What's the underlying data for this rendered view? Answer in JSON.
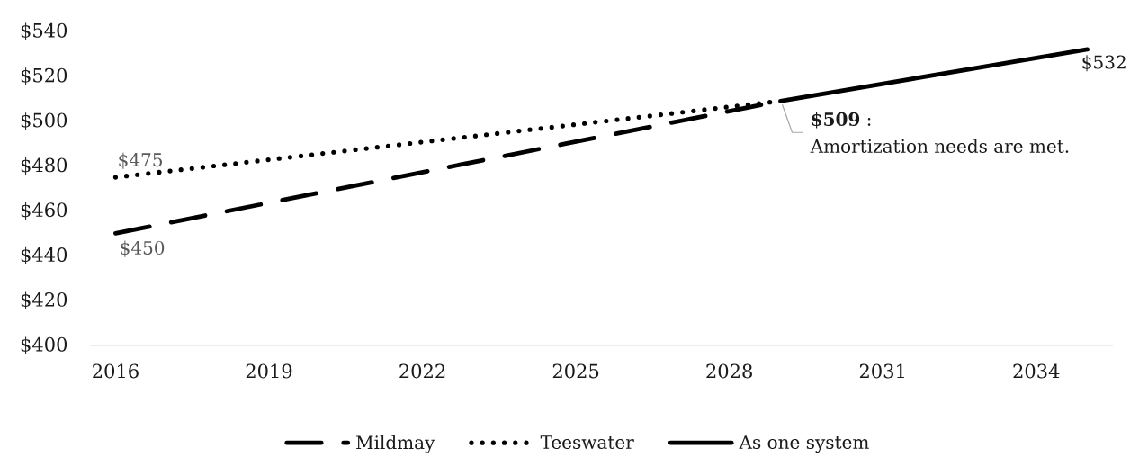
{
  "chart_data": {
    "type": "line",
    "xlim": [
      2015.5,
      2035.5
    ],
    "xticks": [
      2016,
      2019,
      2022,
      2025,
      2028,
      2031,
      2034
    ],
    "ylim": [
      400,
      540
    ],
    "yticks": [
      {
        "value": 400,
        "label": "$400"
      },
      {
        "value": 420,
        "label": "$420"
      },
      {
        "value": 440,
        "label": "$440"
      },
      {
        "value": 460,
        "label": "$460"
      },
      {
        "value": 480,
        "label": "$480"
      },
      {
        "value": 500,
        "label": "$500"
      },
      {
        "value": 520,
        "label": "$520"
      },
      {
        "value": 540,
        "label": "$540"
      }
    ],
    "series": [
      {
        "name": "Mildmay",
        "color": "#000000",
        "line_style": "dashed",
        "x": [
          2016,
          2029
        ],
        "values": [
          450,
          509
        ],
        "value_labels": [
          "$450",
          null
        ]
      },
      {
        "name": "Teeswater",
        "color": "#000000",
        "line_style": "dotted",
        "x": [
          2016,
          2029
        ],
        "values": [
          475,
          509
        ],
        "value_labels": [
          "$475",
          null
        ]
      },
      {
        "name": "As one system",
        "color": "#000000",
        "line_style": "solid",
        "x": [
          2029,
          2035
        ],
        "values": [
          509,
          532
        ],
        "value_labels": [
          "**$509** :",
          "$532"
        ]
      }
    ],
    "annotations": [
      {
        "text": "Amortization needs are met.",
        "x": 2029,
        "y": 509
      }
    ],
    "legend": "bottom"
  }
}
